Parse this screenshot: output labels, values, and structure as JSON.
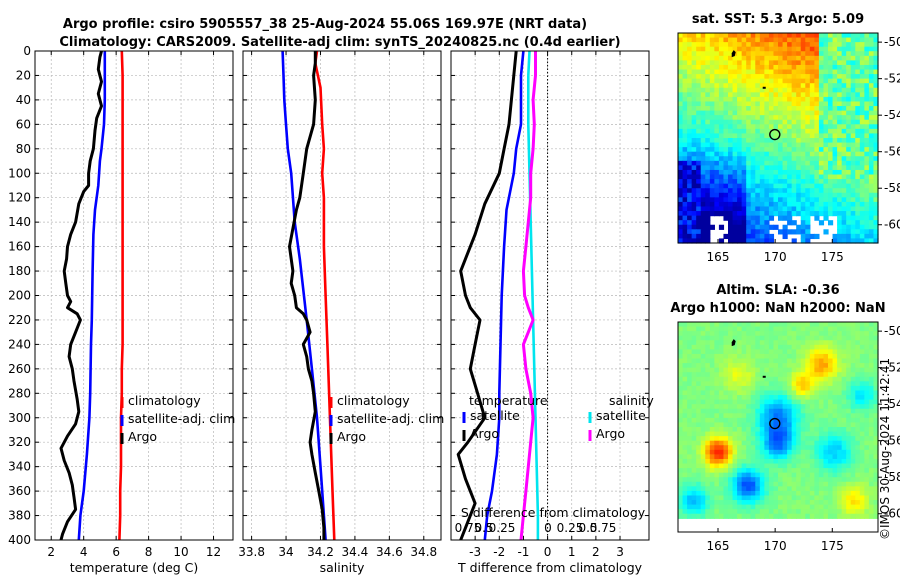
{
  "title_line1": "Argo profile: csiro 5905557_38 25-Aug-2024 55.06S 169.97E (NRT data)",
  "title_line2": "Climatology: CARS2009. Satellite-adj clim: synTS_20240825.nc (0.4d earlier)",
  "stamp": "©IMOS 30-Aug-2024 11:42:41",
  "colors": {
    "climatology": "#ff0000",
    "satellite": "#0000ff",
    "argo": "#000000",
    "salinity_satellite": "#00e5ee",
    "salinity_argo": "#ff00ff",
    "grid": "#b8b8b8"
  },
  "chart_data": [
    {
      "id": "temperature",
      "type": "line",
      "xlabel": "temperature (deg C)",
      "xlim": [
        1,
        13.2
      ],
      "ylim": [
        0,
        400
      ],
      "xticks": [
        2,
        4,
        6,
        8,
        10,
        12
      ],
      "yticks": [
        0,
        20,
        40,
        60,
        80,
        100,
        120,
        140,
        160,
        180,
        200,
        220,
        240,
        260,
        280,
        300,
        320,
        340,
        360,
        380,
        400
      ],
      "y_reversed": true,
      "grid": true,
      "legend": {
        "placement": "lower-right",
        "entries": [
          "climatology",
          "satellite-adj. clim",
          "Argo"
        ]
      },
      "series": [
        {
          "name": "climatology",
          "color": "#ff0000",
          "points": [
            [
              6.35,
              0
            ],
            [
              6.4,
              20
            ],
            [
              6.4,
              40
            ],
            [
              6.4,
              60
            ],
            [
              6.4,
              80
            ],
            [
              6.4,
              100
            ],
            [
              6.4,
              120
            ],
            [
              6.4,
              140
            ],
            [
              6.4,
              160
            ],
            [
              6.4,
              180
            ],
            [
              6.4,
              200
            ],
            [
              6.4,
              220
            ],
            [
              6.4,
              240
            ],
            [
              6.35,
              260
            ],
            [
              6.35,
              280
            ],
            [
              6.3,
              300
            ],
            [
              6.3,
              320
            ],
            [
              6.3,
              340
            ],
            [
              6.25,
              360
            ],
            [
              6.25,
              380
            ],
            [
              6.2,
              400
            ]
          ]
        },
        {
          "name": "satellite-adj. clim",
          "color": "#0000ff",
          "points": [
            [
              5.3,
              0
            ],
            [
              5.3,
              20
            ],
            [
              5.3,
              40
            ],
            [
              5.25,
              60
            ],
            [
              5.1,
              80
            ],
            [
              5.0,
              90
            ],
            [
              4.9,
              110
            ],
            [
              4.7,
              130
            ],
            [
              4.6,
              150
            ],
            [
              4.55,
              180
            ],
            [
              4.5,
              220
            ],
            [
              4.45,
              240
            ],
            [
              4.4,
              280
            ],
            [
              4.35,
              300
            ],
            [
              4.2,
              330
            ],
            [
              4.0,
              360
            ],
            [
              3.8,
              380
            ],
            [
              3.7,
              400
            ]
          ]
        },
        {
          "name": "Argo",
          "color": "#000000",
          "points": [
            [
              5.1,
              0
            ],
            [
              5.0,
              5
            ],
            [
              4.9,
              15
            ],
            [
              5.1,
              25
            ],
            [
              4.9,
              35
            ],
            [
              5.1,
              45
            ],
            [
              4.8,
              55
            ],
            [
              4.7,
              65
            ],
            [
              4.6,
              80
            ],
            [
              4.4,
              90
            ],
            [
              4.3,
              100
            ],
            [
              4.3,
              110
            ],
            [
              4.0,
              115
            ],
            [
              3.7,
              125
            ],
            [
              3.5,
              140
            ],
            [
              3.2,
              150
            ],
            [
              3.0,
              160
            ],
            [
              2.95,
              170
            ],
            [
              2.8,
              180
            ],
            [
              2.9,
              190
            ],
            [
              3.0,
              200
            ],
            [
              3.2,
              205
            ],
            [
              3.0,
              210
            ],
            [
              3.6,
              215
            ],
            [
              3.8,
              220
            ],
            [
              3.5,
              230
            ],
            [
              3.2,
              240
            ],
            [
              3.1,
              250
            ],
            [
              3.3,
              260
            ],
            [
              3.4,
              270
            ],
            [
              3.6,
              285
            ],
            [
              3.7,
              295
            ],
            [
              3.5,
              305
            ],
            [
              3.0,
              315
            ],
            [
              2.6,
              325
            ],
            [
              2.8,
              335
            ],
            [
              3.1,
              345
            ],
            [
              3.3,
              355
            ],
            [
              3.4,
              365
            ],
            [
              3.5,
              375
            ],
            [
              3.0,
              385
            ],
            [
              2.7,
              395
            ],
            [
              2.6,
              400
            ]
          ]
        }
      ]
    },
    {
      "id": "salinity",
      "type": "line",
      "xlabel": "salinity",
      "xlim": [
        33.75,
        34.9
      ],
      "ylim": [
        0,
        400
      ],
      "xticks": [
        33.8,
        34,
        34.2,
        34.4,
        34.6,
        34.8
      ],
      "y_reversed": true,
      "grid": true,
      "legend": {
        "placement": "lower-right",
        "entries": [
          "climatology",
          "satellite-adj. clim",
          "Argo"
        ]
      },
      "series": [
        {
          "name": "climatology",
          "color": "#ff0000",
          "points": [
            [
              34.18,
              0
            ],
            [
              34.17,
              10
            ],
            [
              34.2,
              30
            ],
            [
              34.21,
              60
            ],
            [
              34.22,
              80
            ],
            [
              34.21,
              100
            ],
            [
              34.22,
              120
            ],
            [
              34.22,
              160
            ],
            [
              34.23,
              200
            ],
            [
              34.24,
              240
            ],
            [
              34.25,
              280
            ],
            [
              34.26,
              320
            ],
            [
              34.27,
              360
            ],
            [
              34.28,
              400
            ]
          ]
        },
        {
          "name": "satellite-adj. clim",
          "color": "#0000ff",
          "points": [
            [
              33.98,
              0
            ],
            [
              33.985,
              20
            ],
            [
              33.99,
              40
            ],
            [
              34.0,
              60
            ],
            [
              34.01,
              80
            ],
            [
              34.03,
              100
            ],
            [
              34.05,
              140
            ],
            [
              34.08,
              170
            ],
            [
              34.12,
              220
            ],
            [
              34.15,
              260
            ],
            [
              34.18,
              300
            ],
            [
              34.2,
              340
            ],
            [
              34.22,
              380
            ],
            [
              34.23,
              400
            ]
          ]
        },
        {
          "name": "Argo",
          "color": "#000000",
          "points": [
            [
              34.17,
              0
            ],
            [
              34.17,
              10
            ],
            [
              34.16,
              20
            ],
            [
              34.17,
              40
            ],
            [
              34.16,
              60
            ],
            [
              34.12,
              80
            ],
            [
              34.1,
              100
            ],
            [
              34.08,
              120
            ],
            [
              34.06,
              130
            ],
            [
              34.02,
              160
            ],
            [
              34.04,
              180
            ],
            [
              34.03,
              190
            ],
            [
              34.05,
              200
            ],
            [
              34.06,
              210
            ],
            [
              34.1,
              215
            ],
            [
              34.12,
              220
            ],
            [
              34.14,
              230
            ],
            [
              34.1,
              240
            ],
            [
              34.12,
              250
            ],
            [
              34.13,
              260
            ],
            [
              34.15,
              270
            ],
            [
              34.16,
              280
            ],
            [
              34.17,
              295
            ],
            [
              34.15,
              310
            ],
            [
              34.14,
              320
            ],
            [
              34.15,
              330
            ],
            [
              34.17,
              345
            ],
            [
              34.19,
              360
            ],
            [
              34.21,
              375
            ],
            [
              34.22,
              390
            ],
            [
              34.22,
              400
            ]
          ]
        }
      ]
    },
    {
      "id": "difference",
      "type": "line",
      "xlabel": "T difference from climatology",
      "xlabel_top": "S difference from climatology",
      "xlim": [
        -4,
        4.2
      ],
      "ylim": [
        0,
        400
      ],
      "xticks": [
        -3,
        -2,
        -1,
        0,
        1,
        2,
        3
      ],
      "s_ticks": [
        "0.75",
        "0.5",
        "0.25",
        "0",
        "0.25",
        "0.5",
        "0.75"
      ],
      "y_reversed": true,
      "grid": true,
      "legend_left": {
        "title": "temperature",
        "entries": [
          "satellite",
          "Argo"
        ]
      },
      "legend_right": {
        "title": "salinity",
        "entries": [
          "satellite",
          "Argo"
        ]
      },
      "series": [
        {
          "name": "temperature satellite",
          "color": "#0000ff",
          "points": [
            [
              -1.0,
              0
            ],
            [
              -1.1,
              20
            ],
            [
              -1.1,
              60
            ],
            [
              -1.3,
              80
            ],
            [
              -1.4,
              100
            ],
            [
              -1.7,
              130
            ],
            [
              -1.8,
              160
            ],
            [
              -1.9,
              200
            ],
            [
              -1.95,
              240
            ],
            [
              -2.0,
              280
            ],
            [
              -2.0,
              300
            ],
            [
              -2.1,
              330
            ],
            [
              -2.3,
              360
            ],
            [
              -2.5,
              380
            ],
            [
              -2.6,
              400
            ]
          ]
        },
        {
          "name": "temperature Argo",
          "color": "#000000",
          "points": [
            [
              -1.3,
              0
            ],
            [
              -1.4,
              20
            ],
            [
              -1.5,
              40
            ],
            [
              -1.6,
              60
            ],
            [
              -1.8,
              80
            ],
            [
              -2.0,
              100
            ],
            [
              -2.6,
              125
            ],
            [
              -3.0,
              150
            ],
            [
              -3.4,
              170
            ],
            [
              -3.6,
              180
            ],
            [
              -3.4,
              200
            ],
            [
              -3.2,
              210
            ],
            [
              -2.8,
              220
            ],
            [
              -3.0,
              240
            ],
            [
              -3.2,
              260
            ],
            [
              -2.9,
              280
            ],
            [
              -2.6,
              300
            ],
            [
              -3.3,
              320
            ],
            [
              -3.7,
              330
            ],
            [
              -3.4,
              350
            ],
            [
              -3.0,
              370
            ],
            [
              -3.4,
              390
            ],
            [
              -3.6,
              400
            ]
          ]
        },
        {
          "name": "salinity satellite",
          "color": "#00e5ee",
          "points": [
            [
              -0.75,
              0
            ],
            [
              -0.8,
              20
            ],
            [
              -0.8,
              60
            ],
            [
              -0.75,
              100
            ],
            [
              -0.7,
              140
            ],
            [
              -0.65,
              180
            ],
            [
              -0.6,
              220
            ],
            [
              -0.55,
              260
            ],
            [
              -0.5,
              300
            ],
            [
              -0.45,
              340
            ],
            [
              -0.4,
              380
            ],
            [
              -0.4,
              400
            ]
          ]
        },
        {
          "name": "salinity Argo",
          "color": "#ff00ff",
          "points": [
            [
              -0.5,
              0
            ],
            [
              -0.5,
              20
            ],
            [
              -0.6,
              40
            ],
            [
              -0.55,
              60
            ],
            [
              -0.6,
              80
            ],
            [
              -0.7,
              100
            ],
            [
              -0.7,
              120
            ],
            [
              -0.8,
              140
            ],
            [
              -0.9,
              160
            ],
            [
              -1.0,
              180
            ],
            [
              -0.95,
              200
            ],
            [
              -0.8,
              210
            ],
            [
              -0.6,
              220
            ],
            [
              -0.8,
              230
            ],
            [
              -1.0,
              240
            ],
            [
              -0.9,
              260
            ],
            [
              -0.7,
              280
            ],
            [
              -0.6,
              300
            ],
            [
              -0.7,
              320
            ],
            [
              -0.8,
              340
            ],
            [
              -0.9,
              360
            ],
            [
              -1.0,
              380
            ],
            [
              -1.1,
              400
            ]
          ]
        }
      ]
    },
    {
      "id": "sst_map",
      "type": "heatmap",
      "title": "sat. SST: 5.3 Argo: 5.09",
      "xticks": [
        165,
        170,
        175
      ],
      "yticks": [
        -50,
        -52,
        -54,
        -56,
        -58,
        -60
      ],
      "xlim": [
        161.5,
        179
      ],
      "ylim": [
        -61,
        -49.5
      ],
      "marker": {
        "lon": 169.97,
        "lat": -55.06
      }
    },
    {
      "id": "sla_map",
      "type": "heatmap",
      "title_line1": "Altim. SLA: -0.36",
      "title_line2": "Argo h1000: NaN h2000: NaN",
      "xticks": [
        165,
        170,
        175
      ],
      "yticks": [
        -50,
        -52,
        -54,
        -56,
        -58,
        -60
      ],
      "xlim": [
        161.5,
        179
      ],
      "ylim": [
        -61,
        -49.5
      ],
      "marker": {
        "lon": 169.97,
        "lat": -55.06
      }
    }
  ]
}
